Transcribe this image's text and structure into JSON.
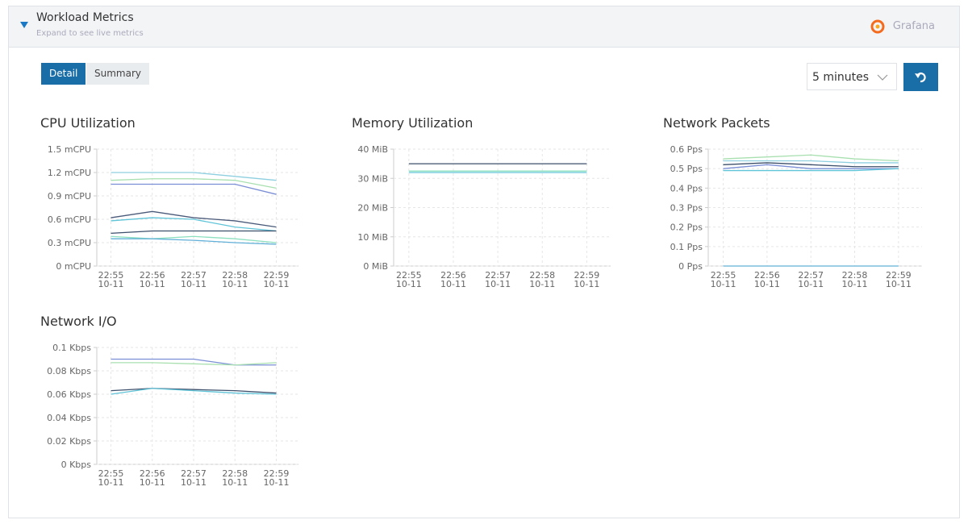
{
  "header": {
    "title": "Workload Metrics",
    "subtitle": "Expand to see live metrics",
    "brand": "Grafana"
  },
  "tabs": [
    "Detail",
    "Summary"
  ],
  "range_select": "5 minutes",
  "chart_data": [
    {
      "type": "line",
      "title": "CPU Utilization",
      "x": [
        "22:55",
        "22:56",
        "22:57",
        "22:58",
        "22:59"
      ],
      "dates": [
        "10-11",
        "10-11",
        "10-11",
        "10-11",
        "10-11"
      ],
      "ylim": [
        0,
        1.5
      ],
      "yticks": [
        {
          "value": 0,
          "label": "0 mCPU"
        },
        {
          "value": 0.3,
          "label": "0.3 mCPU"
        },
        {
          "value": 0.6,
          "label": "0.6 mCPU"
        },
        {
          "value": 0.9,
          "label": "0.9 mCPU"
        },
        {
          "value": 1.2,
          "label": "1.2 mCPU"
        },
        {
          "value": 1.5,
          "label": "1.5 mCPU"
        }
      ],
      "grid": true,
      "series": [
        {
          "color": "#8ecfe0",
          "values": [
            1.2,
            1.2,
            1.2,
            1.15,
            1.1
          ]
        },
        {
          "color": "#a8e0b0",
          "values": [
            1.1,
            1.12,
            1.12,
            1.1,
            1.0
          ]
        },
        {
          "color": "#7b8fd6",
          "values": [
            1.05,
            1.05,
            1.05,
            1.05,
            0.92
          ]
        },
        {
          "color": "#4a5a7a",
          "values": [
            0.62,
            0.7,
            0.62,
            0.58,
            0.5
          ]
        },
        {
          "color": "#5fc4d8",
          "values": [
            0.58,
            0.62,
            0.6,
            0.5,
            0.45
          ]
        },
        {
          "color": "#3c4f6b",
          "values": [
            0.42,
            0.45,
            0.45,
            0.45,
            0.45
          ]
        },
        {
          "color": "#8de0c0",
          "values": [
            0.38,
            0.35,
            0.38,
            0.35,
            0.3
          ]
        },
        {
          "color": "#62b0d8",
          "values": [
            0.35,
            0.35,
            0.33,
            0.3,
            0.28
          ]
        }
      ]
    },
    {
      "type": "line",
      "title": "Memory Utilization",
      "x": [
        "22:55",
        "22:56",
        "22:57",
        "22:58",
        "22:59"
      ],
      "dates": [
        "10-11",
        "10-11",
        "10-11",
        "10-11",
        "10-11"
      ],
      "ylim": [
        0,
        40
      ],
      "yticks": [
        {
          "value": 0,
          "label": "0 MiB"
        },
        {
          "value": 10,
          "label": "10 MiB"
        },
        {
          "value": 20,
          "label": "20 MiB"
        },
        {
          "value": 30,
          "label": "30 MiB"
        },
        {
          "value": 40,
          "label": "40 MiB"
        }
      ],
      "grid": true,
      "series": [
        {
          "color": "#3c4f6b",
          "values": [
            35,
            35,
            35,
            35,
            35
          ]
        },
        {
          "color": "#8de0c0",
          "values": [
            32.5,
            32.5,
            32.5,
            32.5,
            32.5
          ]
        },
        {
          "color": "#5fc4d8",
          "values": [
            32,
            32,
            32,
            32,
            32
          ]
        }
      ]
    },
    {
      "type": "line",
      "title": "Network Packets",
      "x": [
        "22:55",
        "22:56",
        "22:57",
        "22:58",
        "22:59"
      ],
      "dates": [
        "10-11",
        "10-11",
        "10-11",
        "10-11",
        "10-11"
      ],
      "ylim": [
        0,
        0.6
      ],
      "yticks": [
        {
          "value": 0,
          "label": "0 Pps"
        },
        {
          "value": 0.1,
          "label": "0.1 Pps"
        },
        {
          "value": 0.2,
          "label": "0.2 Pps"
        },
        {
          "value": 0.3,
          "label": "0.3 Pps"
        },
        {
          "value": 0.4,
          "label": "0.4 Pps"
        },
        {
          "value": 0.5,
          "label": "0.5 Pps"
        },
        {
          "value": 0.6,
          "label": "0.6 Pps"
        }
      ],
      "grid": true,
      "series": [
        {
          "color": "#a8e0b0",
          "values": [
            0.55,
            0.56,
            0.57,
            0.55,
            0.54
          ]
        },
        {
          "color": "#8ecfe0",
          "values": [
            0.54,
            0.54,
            0.54,
            0.53,
            0.53
          ]
        },
        {
          "color": "#3c4f6b",
          "values": [
            0.52,
            0.53,
            0.52,
            0.51,
            0.51
          ]
        },
        {
          "color": "#7b8fd6",
          "values": [
            0.5,
            0.52,
            0.5,
            0.5,
            0.5
          ]
        },
        {
          "color": "#5fc4d8",
          "values": [
            0.49,
            0.49,
            0.49,
            0.49,
            0.5
          ]
        },
        {
          "color": "#62b0d8",
          "values": [
            0,
            0,
            0,
            0,
            0
          ]
        }
      ]
    },
    {
      "type": "line",
      "title": "Network I/O",
      "x": [
        "22:55",
        "22:56",
        "22:57",
        "22:58",
        "22:59"
      ],
      "dates": [
        "10-11",
        "10-11",
        "10-11",
        "10-11",
        "10-11"
      ],
      "ylim": [
        0,
        0.1
      ],
      "yticks": [
        {
          "value": 0,
          "label": "0 Kbps"
        },
        {
          "value": 0.02,
          "label": "0.02 Kbps"
        },
        {
          "value": 0.04,
          "label": "0.04 Kbps"
        },
        {
          "value": 0.06,
          "label": "0.06 Kbps"
        },
        {
          "value": 0.08,
          "label": "0.08 Kbps"
        },
        {
          "value": 0.1,
          "label": "0.1 Kbps"
        }
      ],
      "grid": true,
      "series": [
        {
          "color": "#7b8fd6",
          "values": [
            0.09,
            0.09,
            0.09,
            0.085,
            0.085
          ]
        },
        {
          "color": "#a8e0b0",
          "values": [
            0.087,
            0.087,
            0.086,
            0.085,
            0.087
          ]
        },
        {
          "color": "#3c4f6b",
          "values": [
            0.063,
            0.065,
            0.064,
            0.063,
            0.061
          ]
        },
        {
          "color": "#5fc4d8",
          "values": [
            0.06,
            0.065,
            0.063,
            0.061,
            0.06
          ]
        }
      ]
    }
  ]
}
